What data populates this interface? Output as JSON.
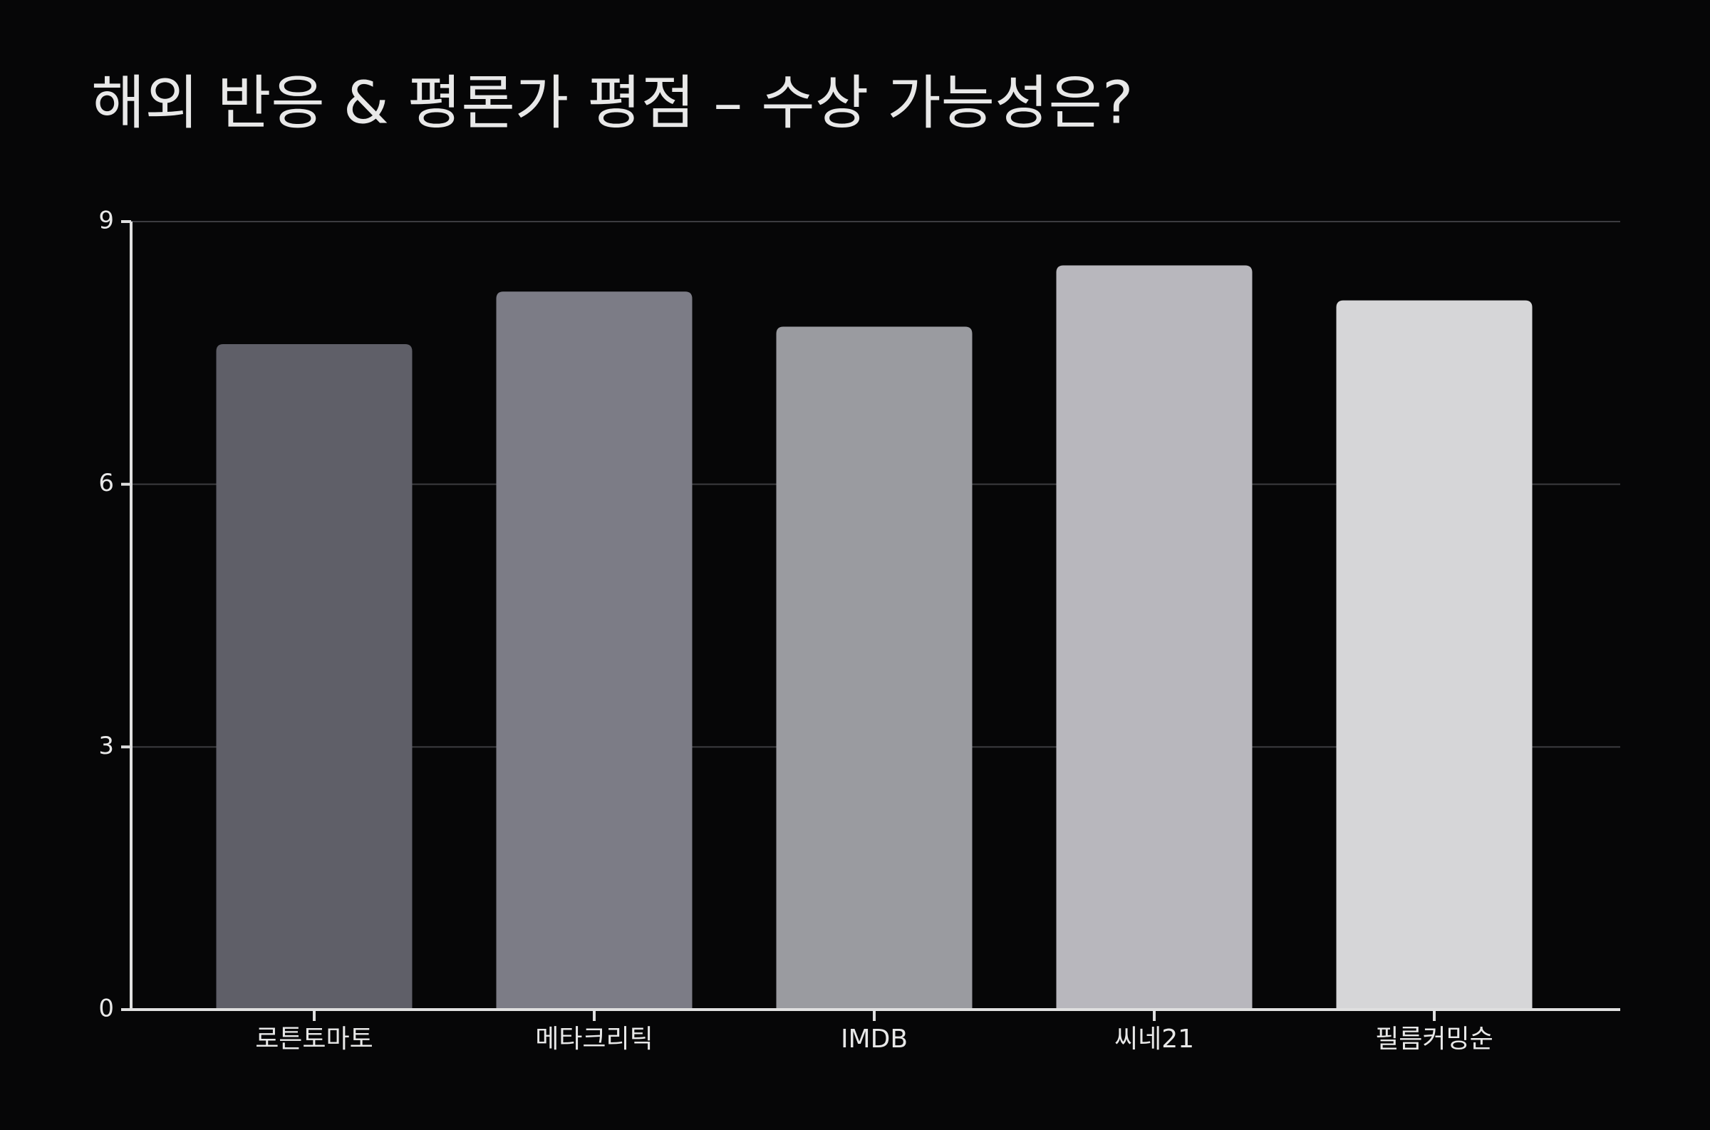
{
  "chart_data": {
    "type": "bar",
    "title": "해외 반응 & 평론가 평점 – 수상 가능성은?",
    "categories": [
      "로튼토마토",
      "메타크리틱",
      "IMDB",
      "씨네21",
      "필름커밍순"
    ],
    "values": [
      7.6,
      8.2,
      7.8,
      8.5,
      8.1
    ],
    "colors": [
      "#5f5f68",
      "#7c7c86",
      "#9a9ba0",
      "#b8b7bd",
      "#d6d6d8"
    ],
    "ylim": [
      0,
      9
    ],
    "yticks": [
      0,
      3,
      6,
      9
    ],
    "grid": true
  }
}
